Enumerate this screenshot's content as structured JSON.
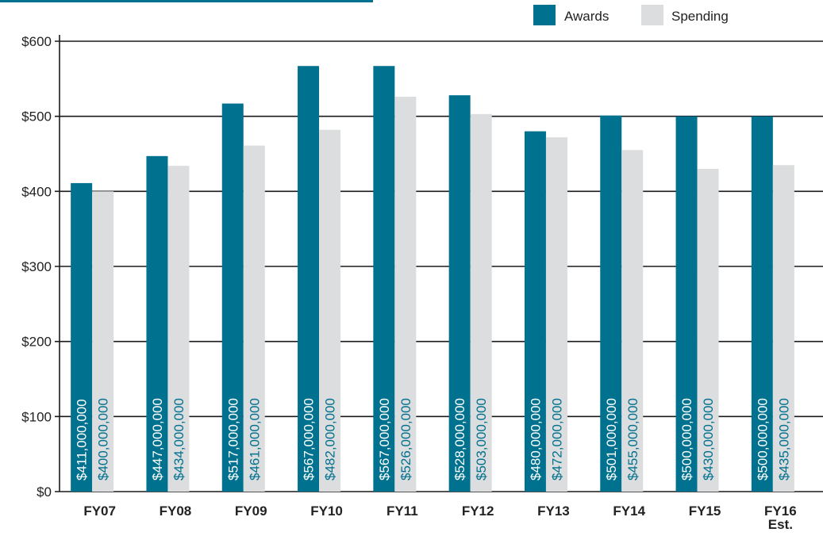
{
  "chart_data": {
    "type": "bar",
    "categories": [
      "FY07",
      "FY08",
      "FY09",
      "FY10",
      "FY11",
      "FY12",
      "FY13",
      "FY14",
      "FY15",
      "FY16\nEst."
    ],
    "series": [
      {
        "name": "Awards",
        "color": "#00728F",
        "values": [
          411,
          447,
          517,
          567,
          567,
          528,
          480,
          501,
          500,
          500
        ],
        "labels": [
          "$411,000,000",
          "$447,000,000",
          "$517,000,000",
          "$567,000,000",
          "$567,000,000",
          "$528,000,000",
          "$480,000,000",
          "$501,000,000",
          "$500,000,000",
          "$500,000,000"
        ],
        "label_color": "#ffffff"
      },
      {
        "name": "Spending",
        "color": "#DCDDDE",
        "values": [
          400,
          434,
          461,
          482,
          526,
          503,
          472,
          455,
          430,
          435
        ],
        "labels": [
          "$400,000,000",
          "$434,000,000",
          "$461,000,000",
          "$482,000,000",
          "$526,000,000",
          "$503,000,000",
          "$472,000,000",
          "$455,000,000",
          "$430,000,000",
          "$435,000,000"
        ],
        "label_color": "#00728F"
      }
    ],
    "ylim": [
      0,
      600
    ],
    "yticks": [
      0,
      100,
      200,
      300,
      400,
      500,
      600
    ],
    "ytick_labels": [
      "$0",
      "$100",
      "$200",
      "$300",
      "$400",
      "$500",
      "$600"
    ],
    "grid": true,
    "legend": "top-right",
    "accent_color": "#00728F"
  }
}
